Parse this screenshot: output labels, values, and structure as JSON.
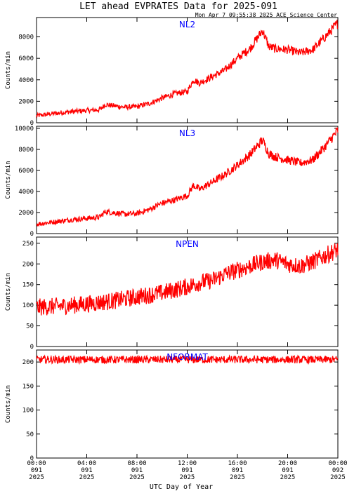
{
  "header": {
    "title": "LET ahead EVPRATES Data for 2025-091",
    "timestamp": "Mon Apr  7 09:55:38 2025 ACE Science Center"
  },
  "x_axis": {
    "label": "UTC Day of Year",
    "ticks": [
      {
        "hour": 0,
        "time": "00:00",
        "day": "091",
        "year": "2025"
      },
      {
        "hour": 4,
        "time": "04:00",
        "day": "091",
        "year": "2025"
      },
      {
        "hour": 8,
        "time": "08:00",
        "day": "091",
        "year": "2025"
      },
      {
        "hour": 12,
        "time": "12:00",
        "day": "091",
        "year": "2025"
      },
      {
        "hour": 16,
        "time": "16:00",
        "day": "091",
        "year": "2025"
      },
      {
        "hour": 20,
        "time": "20:00",
        "day": "091",
        "year": "2025"
      },
      {
        "hour": 24,
        "time": "00:00",
        "day": "092",
        "year": "2025"
      }
    ]
  },
  "colors": {
    "series": "#ff0000",
    "panel_label": "#0000ff",
    "axes": "#000000"
  },
  "chart_data": [
    {
      "type": "line",
      "title": "NL2",
      "ylabel": "Counts/min",
      "xlim": [
        0,
        24
      ],
      "ylim": [
        0,
        9800
      ],
      "yticks": [
        0,
        2000,
        4000,
        6000,
        8000
      ],
      "grid": false,
      "x": [
        0,
        1,
        2,
        3,
        4,
        5,
        5.5,
        6,
        7,
        8,
        9,
        10,
        11,
        12,
        12.5,
        13,
        14,
        15,
        16,
        17,
        18,
        18.5,
        19,
        20,
        21,
        22,
        23,
        24
      ],
      "y": [
        650,
        800,
        950,
        1050,
        1150,
        1200,
        1700,
        1600,
        1450,
        1500,
        1800,
        2300,
        2700,
        2900,
        4000,
        3700,
        4300,
        4900,
        6000,
        6900,
        8600,
        7100,
        6900,
        6800,
        6500,
        6800,
        8000,
        9300
      ]
    },
    {
      "type": "line",
      "title": "NL3",
      "ylabel": "Counts/min",
      "xlim": [
        0,
        24
      ],
      "ylim": [
        0,
        10200
      ],
      "yticks": [
        0,
        2000,
        4000,
        6000,
        8000,
        10000
      ],
      "grid": false,
      "x": [
        0,
        1,
        2,
        3,
        4,
        5,
        5.5,
        6,
        7,
        8,
        9,
        10,
        11,
        12,
        12.5,
        13,
        14,
        15,
        16,
        17,
        18,
        18.5,
        19,
        20,
        21,
        22,
        23,
        24
      ],
      "y": [
        900,
        1050,
        1200,
        1350,
        1450,
        1550,
        2100,
        2000,
        1850,
        1900,
        2300,
        2900,
        3200,
        3600,
        4600,
        4200,
        4900,
        5600,
        6500,
        7500,
        8900,
        7600,
        7300,
        7000,
        6700,
        7000,
        8300,
        9800
      ]
    },
    {
      "type": "line",
      "title": "NPEN",
      "ylabel": "Counts/min",
      "xlim": [
        0,
        24
      ],
      "ylim": [
        0,
        265
      ],
      "yticks": [
        0,
        50,
        100,
        150,
        200,
        250
      ],
      "grid": false,
      "x": [
        0,
        2,
        4,
        6,
        8,
        10,
        12,
        13,
        14,
        15,
        16,
        17,
        18,
        19,
        20,
        21,
        22,
        23,
        24
      ],
      "y": [
        95,
        98,
        103,
        110,
        120,
        130,
        145,
        155,
        160,
        175,
        185,
        195,
        205,
        210,
        200,
        195,
        205,
        220,
        235
      ]
    },
    {
      "type": "line",
      "title": "NFORMAT",
      "ylabel": "Counts/min",
      "xlim": [
        0,
        24
      ],
      "ylim": [
        0,
        225
      ],
      "yticks": [
        0,
        50,
        100,
        150,
        200
      ],
      "grid": false,
      "x": [
        0,
        4,
        8,
        12,
        16,
        20,
        24
      ],
      "y": [
        205,
        205,
        205,
        205,
        205,
        205,
        205
      ]
    }
  ]
}
